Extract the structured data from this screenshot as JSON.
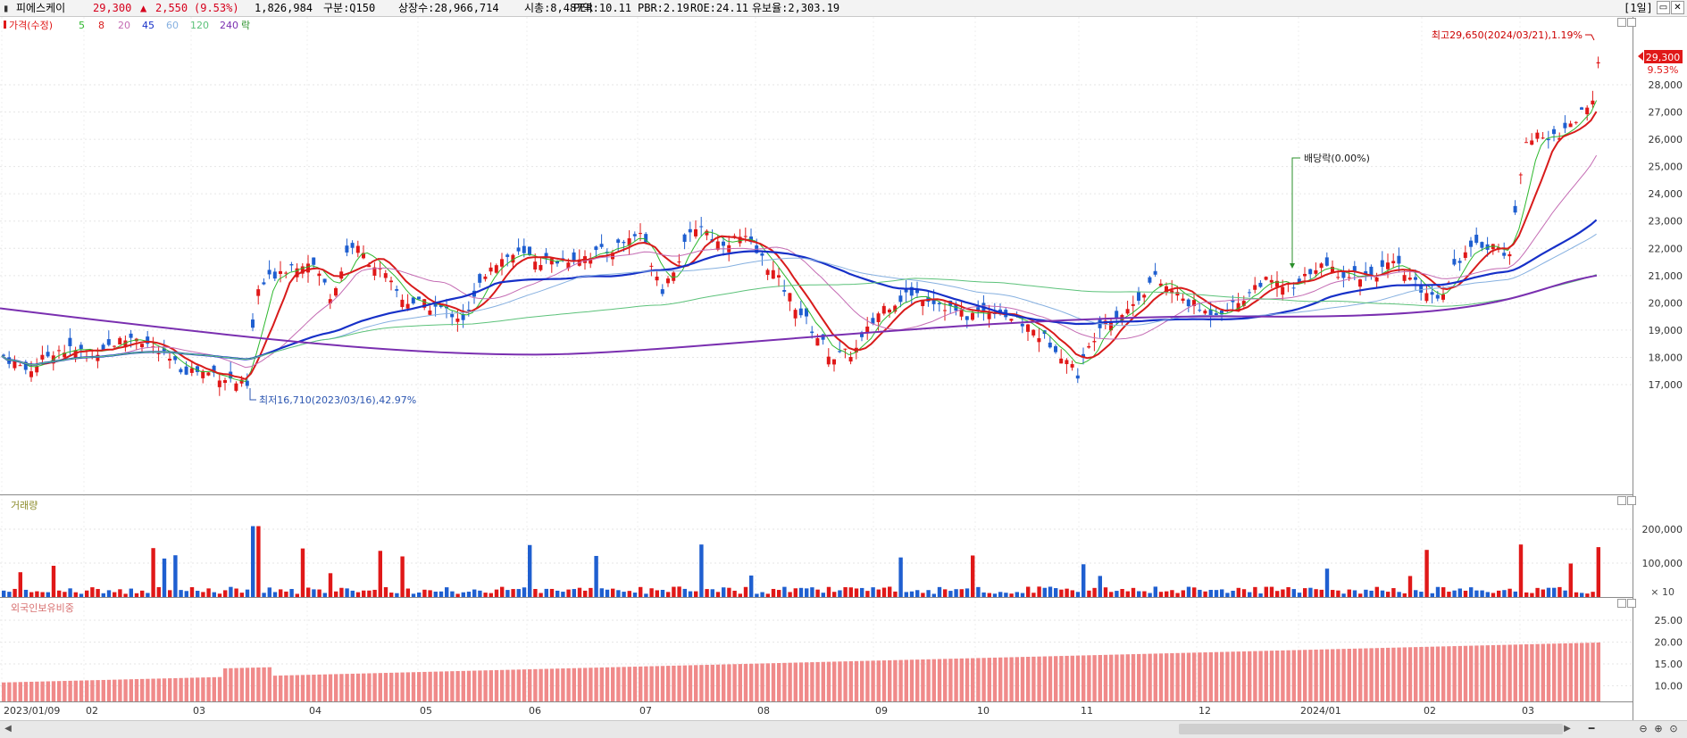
{
  "header": {
    "stock_name": "피에스케이",
    "price": "29,300",
    "change_arrow": "▲",
    "change": "2,550",
    "change_pct": "(9.53%)",
    "volume": "1,826,984",
    "market_label": "구분:Q150",
    "listed_shares": "상장수:28,966,714",
    "market_cap": "시총:8,487억",
    "per": "PER:10.11",
    "pbr": "PBR:2.19",
    "roe": "ROE:24.11",
    "holding": "유보율:2,303.19",
    "period_button": "[1일]"
  },
  "price_panel": {
    "legend": {
      "price_label": "가격(수정)",
      "ma_labels": [
        "5",
        "8",
        "20",
        "45",
        "60",
        "120",
        "240"
      ],
      "ex_label": "락"
    },
    "y_ticks": [
      "28,000",
      "27,000",
      "26,000",
      "25,000",
      "24,000",
      "23,000",
      "22,000",
      "21,000",
      "20,000",
      "19,000",
      "18,000",
      "17,000"
    ],
    "current_price_tag": "29,300",
    "current_pct_tag": "9.53%",
    "annotations": {
      "high": "최고29,650(2024/03/21),1.19%",
      "low": "최저16,710(2023/03/16),42.97%",
      "dividend": "배당락(0.00%)"
    }
  },
  "volume_panel": {
    "label": "거래량",
    "y_ticks": [
      "200,000",
      "100,000"
    ],
    "unit": "× 10"
  },
  "foreign_panel": {
    "label": "외국인보유비중",
    "y_ticks": [
      "25.00",
      "20.00",
      "15.00",
      "10.00"
    ]
  },
  "x_axis": {
    "labels": [
      "2023/01/09",
      "02",
      "03",
      "04",
      "05",
      "06",
      "07",
      "08",
      "09",
      "10",
      "11",
      "12",
      "2024/01",
      "02",
      "03"
    ]
  },
  "colors": {
    "up": "#e01818",
    "down": "#1f5fd0",
    "ma5": "#2eb82e",
    "ma8": "#d81b1b",
    "ma20": "#c46bb3",
    "ma45": "#1630c8",
    "ma60": "#86b0e0",
    "ma120": "#5cc27a",
    "ma240": "#7a2fb0",
    "foreign": "#f08a8a"
  }
}
